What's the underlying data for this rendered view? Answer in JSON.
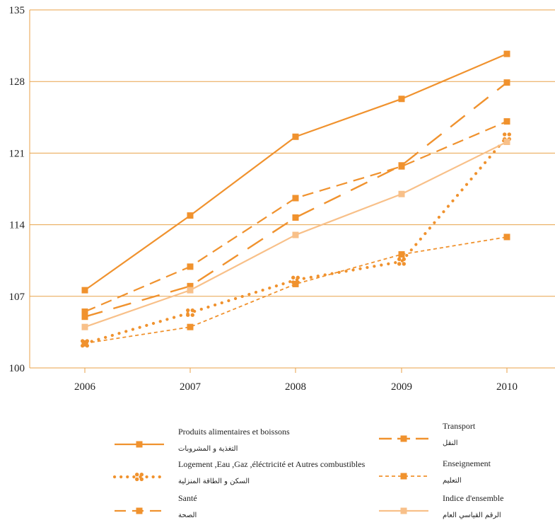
{
  "chart_data": {
    "type": "line",
    "title": "",
    "xlabel": "",
    "ylabel": "",
    "x": [
      "2006",
      "2007",
      "2008",
      "2009",
      "2010"
    ],
    "ylim": [
      100,
      135
    ],
    "yticks": [
      100,
      107,
      114,
      121,
      128,
      135
    ],
    "grid": "horizontal",
    "legend_position": "bottom",
    "series": [
      {
        "name": "Produits alimentaires et boissons",
        "name_ar": "التغذية و المشروبات",
        "values": [
          107.6,
          114.9,
          122.6,
          126.3,
          130.7
        ],
        "color": "#F0922E",
        "style": "solid"
      },
      {
        "name": "Transport",
        "name_ar": "النقل",
        "values": [
          105.0,
          108.0,
          114.7,
          119.8,
          127.9
        ],
        "color": "#F0922E",
        "style": "longdash"
      },
      {
        "name": "Logement ,Eau ,Gaz ,éléctricité et Autres combustibles",
        "name_ar": "السكن و الطاقة المنزلية",
        "values": [
          102.4,
          105.4,
          108.6,
          110.4,
          122.6
        ],
        "color": "#F0922E",
        "style": "dotted"
      },
      {
        "name": "Enseignement",
        "name_ar": "التعليم",
        "values": [
          102.4,
          104.0,
          108.2,
          111.1,
          112.8
        ],
        "color": "#F0922E",
        "style": "shortdash"
      },
      {
        "name": "Santé",
        "name_ar": "الصحة",
        "values": [
          105.5,
          109.9,
          116.6,
          119.7,
          124.1
        ],
        "color": "#F0922E",
        "style": "dash"
      },
      {
        "name": "Indice d'ensemble",
        "name_ar": "الرقم القياسي العام",
        "values": [
          104.0,
          107.6,
          113.0,
          117.0,
          122.1
        ],
        "color": "#F8C089",
        "style": "solid"
      }
    ]
  }
}
